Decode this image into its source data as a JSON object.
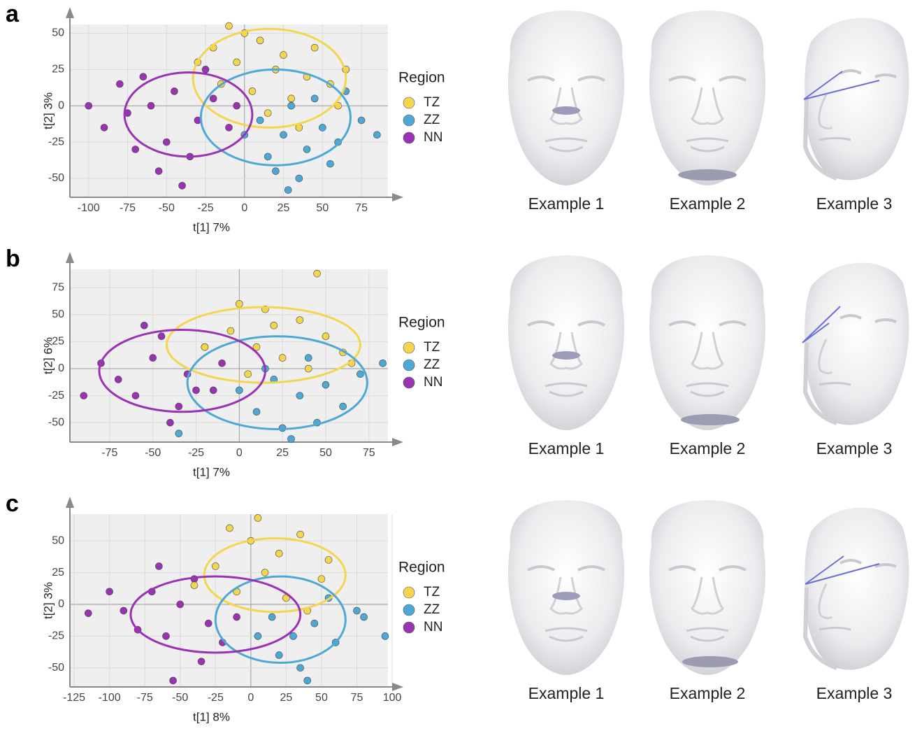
{
  "chart_data": [
    {
      "type": "scatter",
      "panel": "a",
      "x_label": "t[1] 7%",
      "y_label": "t[2] 3%",
      "legend_title": "Region",
      "xlim": [
        -112,
        92
      ],
      "ylim": [
        -63,
        56
      ],
      "xticks": [
        -100,
        -75,
        -50,
        -25,
        0,
        25,
        50,
        75
      ],
      "yticks": [
        -50,
        -25,
        0,
        25,
        50
      ],
      "grid": true,
      "series": [
        {
          "name": "TZ",
          "color": "#f3d54e",
          "x": [
            -20,
            -5,
            10,
            25,
            40,
            5,
            -15,
            30,
            55,
            0,
            20,
            -30,
            45,
            15,
            60,
            -10,
            35,
            65
          ],
          "values": [
            40,
            30,
            45,
            35,
            20,
            10,
            15,
            5,
            15,
            50,
            25,
            30,
            40,
            -5,
            0,
            55,
            -15,
            25
          ],
          "ellipse": {
            "cx": 16,
            "cy": 19,
            "rx": 49,
            "ry": 34
          }
        },
        {
          "name": "ZZ",
          "color": "#4ea8d6",
          "x": [
            10,
            25,
            40,
            30,
            50,
            15,
            60,
            45,
            20,
            75,
            35,
            0,
            55,
            85,
            28,
            65
          ],
          "values": [
            -10,
            -20,
            -30,
            0,
            -15,
            -35,
            -25,
            5,
            -45,
            -10,
            -50,
            -20,
            -40,
            -20,
            -58,
            10
          ],
          "ellipse": {
            "cx": 20,
            "cy": -8,
            "rx": 48,
            "ry": 33
          }
        },
        {
          "name": "NN",
          "color": "#9a32b4",
          "x": [
            -60,
            -45,
            -30,
            -75,
            -50,
            -20,
            -90,
            -35,
            -65,
            -10,
            -55,
            -100,
            -25,
            -80,
            -40,
            -70,
            -5
          ],
          "values": [
            0,
            10,
            -10,
            -5,
            -25,
            5,
            -15,
            -35,
            20,
            -15,
            -45,
            0,
            25,
            15,
            -55,
            -30,
            0
          ],
          "ellipse": {
            "cx": -36,
            "cy": -6,
            "rx": 41,
            "ry": 29
          }
        }
      ]
    },
    {
      "type": "scatter",
      "panel": "b",
      "x_label": "t[1] 7%",
      "y_label": "t[2] 6%",
      "legend_title": "Region",
      "xlim": [
        -98,
        86
      ],
      "ylim": [
        -68,
        92
      ],
      "xticks": [
        -75,
        -50,
        -25,
        0,
        25,
        50,
        75
      ],
      "yticks": [
        -50,
        -25,
        0,
        25,
        50,
        75
      ],
      "grid": true,
      "series": [
        {
          "name": "TZ",
          "color": "#f3d54e",
          "x": [
            0,
            20,
            45,
            10,
            35,
            -5,
            50,
            25,
            60,
            15,
            -20,
            40,
            5,
            65
          ],
          "values": [
            60,
            40,
            88,
            20,
            45,
            35,
            30,
            10,
            15,
            55,
            20,
            0,
            -5,
            5
          ],
          "ellipse": {
            "cx": 14,
            "cy": 22,
            "rx": 56,
            "ry": 35
          }
        },
        {
          "name": "ZZ",
          "color": "#4ea8d6",
          "x": [
            20,
            35,
            10,
            50,
            25,
            60,
            40,
            0,
            70,
            45,
            83,
            30,
            -35,
            15
          ],
          "values": [
            -10,
            -25,
            -40,
            -15,
            -55,
            -35,
            10,
            -20,
            -5,
            -50,
            5,
            -65,
            -60,
            0
          ],
          "ellipse": {
            "cx": 22,
            "cy": -13,
            "rx": 52,
            "ry": 43
          }
        },
        {
          "name": "NN",
          "color": "#9a32b4",
          "x": [
            -50,
            -30,
            -70,
            -45,
            -20,
            -60,
            -80,
            -35,
            -10,
            -90,
            -55,
            -15,
            -40,
            -25
          ],
          "values": [
            10,
            -5,
            -10,
            30,
            20,
            -25,
            5,
            -35,
            5,
            -25,
            40,
            -20,
            -50,
            -20
          ],
          "ellipse": {
            "cx": -33,
            "cy": -2,
            "rx": 48,
            "ry": 38
          }
        }
      ]
    },
    {
      "type": "scatter",
      "panel": "c",
      "x_label": "t[1] 8%",
      "y_label": "t[2] 3%",
      "legend_title": "Region",
      "xlim": [
        -128,
        97
      ],
      "ylim": [
        -65,
        71
      ],
      "xticks": [
        -125,
        -100,
        -75,
        -50,
        -25,
        0,
        25,
        50,
        75,
        100
      ],
      "yticks": [
        -50,
        -25,
        0,
        25,
        50
      ],
      "grid": true,
      "series": [
        {
          "name": "TZ",
          "color": "#f3d54e",
          "x": [
            -15,
            0,
            20,
            35,
            10,
            -25,
            50,
            -10,
            40,
            25,
            -40,
            5,
            55
          ],
          "values": [
            60,
            50,
            40,
            55,
            25,
            30,
            20,
            10,
            -5,
            5,
            15,
            68,
            35
          ],
          "ellipse": {
            "cx": 17,
            "cy": 23,
            "rx": 50,
            "ry": 29
          }
        },
        {
          "name": "ZZ",
          "color": "#4ea8d6",
          "x": [
            15,
            30,
            45,
            60,
            20,
            75,
            35,
            5,
            55,
            95,
            80,
            40
          ],
          "values": [
            -10,
            -25,
            -15,
            -30,
            -40,
            -5,
            -50,
            -25,
            5,
            -25,
            -10,
            -60
          ],
          "ellipse": {
            "cx": 21,
            "cy": -12,
            "rx": 46,
            "ry": 34
          }
        },
        {
          "name": "NN",
          "color": "#9a32b4",
          "x": [
            -50,
            -30,
            -70,
            -60,
            -90,
            -40,
            -20,
            -115,
            -80,
            -55,
            -10,
            -100,
            -35,
            -65
          ],
          "values": [
            0,
            -15,
            10,
            -25,
            -5,
            20,
            -30,
            -7,
            -20,
            -60,
            -10,
            10,
            -45,
            30
          ],
          "ellipse": {
            "cx": -25,
            "cy": -8,
            "rx": 60,
            "ry": 30
          }
        }
      ]
    }
  ],
  "face_examples": [
    [
      "Example 1",
      "Example 2",
      "Example 3"
    ],
    [
      "Example 1",
      "Example 2",
      "Example 3"
    ],
    [
      "Example 1",
      "Example 2",
      "Example 3"
    ]
  ]
}
